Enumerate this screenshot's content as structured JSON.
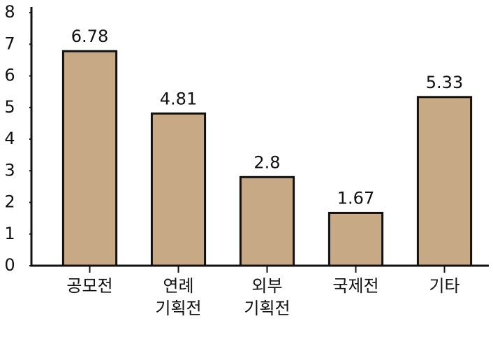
{
  "chart_data": {
    "type": "bar",
    "categories": [
      [
        "공모전"
      ],
      [
        "연례",
        "기획전"
      ],
      [
        "외부",
        "기획전"
      ],
      [
        "국제전"
      ],
      [
        "기타"
      ]
    ],
    "values": [
      6.78,
      4.81,
      2.8,
      1.67,
      5.33
    ],
    "color": "#c7aa85",
    "ylim": [
      0,
      8
    ],
    "yticks": [
      0,
      1,
      2,
      3,
      4,
      5,
      6,
      7,
      8
    ]
  }
}
